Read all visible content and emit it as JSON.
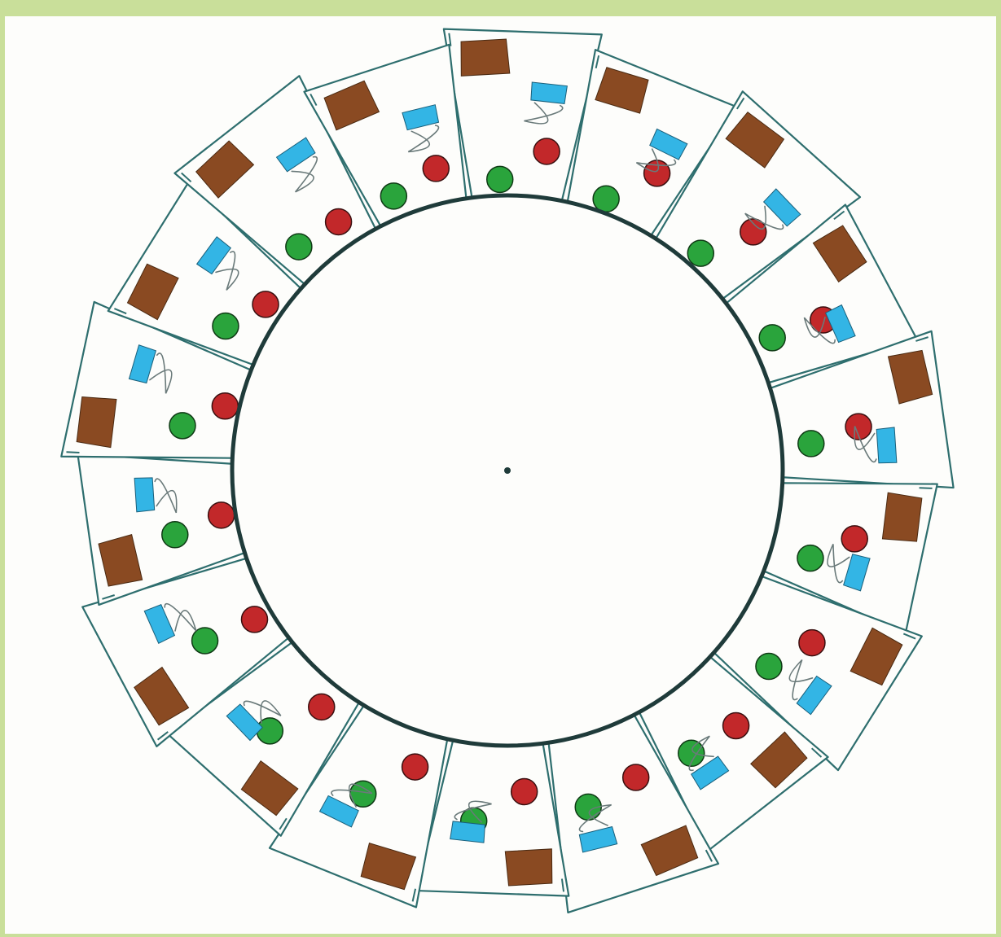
{
  "figure": {
    "kind": "phenakistoscope disc",
    "frame_count": 18,
    "colors": {
      "background": "#c9df9a",
      "paper": "#fdfdfb",
      "outline": "#2e6e6e",
      "inner_circle": "#1f3b3a",
      "red_ball": "#c2282a",
      "green_ball": "#2aa43c",
      "blue_cuff": "#33b5e5",
      "brown_sleeve": "#8a4a22"
    },
    "frames": [
      {
        "sleeve": "brown",
        "cuff": "blue",
        "red_ball": true,
        "green_ball": true
      },
      {
        "sleeve": "brown",
        "cuff": "blue",
        "red_ball": true,
        "green_ball": true
      },
      {
        "sleeve": "brown",
        "cuff": "blue",
        "red_ball": true,
        "green_ball": true
      },
      {
        "sleeve": "brown",
        "cuff": "blue",
        "red_ball": true,
        "green_ball": true
      },
      {
        "sleeve": "brown",
        "cuff": "blue",
        "red_ball": true,
        "green_ball": true
      },
      {
        "sleeve": "brown",
        "cuff": "blue",
        "red_ball": true,
        "green_ball": true
      },
      {
        "sleeve": "brown",
        "cuff": "blue",
        "red_ball": true,
        "green_ball": true
      },
      {
        "sleeve": "brown",
        "cuff": "blue",
        "red_ball": true,
        "green_ball": true
      },
      {
        "sleeve": "brown",
        "cuff": "blue",
        "red_ball": true,
        "green_ball": true
      },
      {
        "sleeve": "brown",
        "cuff": "blue",
        "red_ball": true,
        "green_ball": true
      },
      {
        "sleeve": "brown",
        "cuff": "blue",
        "red_ball": true,
        "green_ball": true
      },
      {
        "sleeve": "brown",
        "cuff": "blue",
        "red_ball": true,
        "green_ball": true
      },
      {
        "sleeve": "brown",
        "cuff": "blue",
        "red_ball": true,
        "green_ball": true
      },
      {
        "sleeve": "brown",
        "cuff": "blue",
        "red_ball": true,
        "green_ball": true
      },
      {
        "sleeve": "brown",
        "cuff": "blue",
        "red_ball": true,
        "green_ball": true
      },
      {
        "sleeve": "brown",
        "cuff": "blue",
        "red_ball": true,
        "green_ball": true
      },
      {
        "sleeve": "brown",
        "cuff": "blue",
        "red_ball": true,
        "green_ball": true
      },
      {
        "sleeve": "brown",
        "cuff": "blue",
        "red_ball": true,
        "green_ball": true
      }
    ]
  }
}
